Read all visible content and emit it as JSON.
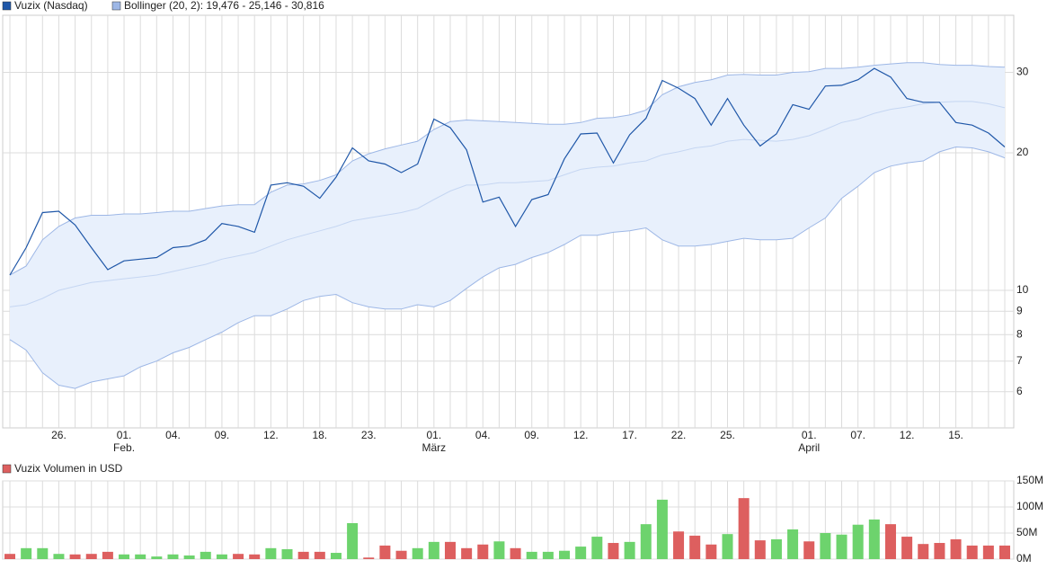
{
  "chart_data": [
    {
      "type": "line",
      "log_scale": true,
      "grid": true,
      "categories": [
        null,
        null,
        null,
        "26.",
        null,
        null,
        null,
        "01.",
        null,
        null,
        "04.",
        null,
        null,
        "09.",
        null,
        null,
        "12.",
        null,
        null,
        "18.",
        null,
        null,
        "23.",
        null,
        null,
        null,
        "01.",
        null,
        null,
        "04.",
        null,
        null,
        "09.",
        null,
        null,
        "12.",
        null,
        null,
        "17.",
        null,
        null,
        "22.",
        null,
        null,
        "25.",
        null,
        null,
        null,
        null,
        "01.",
        null,
        null,
        "07.",
        null,
        null,
        "12.",
        null,
        null,
        "15.",
        null,
        null,
        null
      ],
      "category_sublabels": [
        null,
        null,
        null,
        null,
        null,
        null,
        null,
        "Feb.",
        null,
        null,
        null,
        null,
        null,
        null,
        null,
        null,
        null,
        null,
        null,
        null,
        null,
        null,
        null,
        null,
        null,
        null,
        "März",
        null,
        null,
        null,
        null,
        null,
        null,
        null,
        null,
        null,
        null,
        null,
        null,
        null,
        null,
        null,
        null,
        null,
        null,
        null,
        null,
        null,
        null,
        "April",
        null,
        null,
        null,
        null,
        null,
        null,
        null,
        null,
        null,
        null,
        null,
        null
      ],
      "series": [
        {
          "name": "Vuzix (Nasdaq)",
          "color": "#1f57a8",
          "values": [
            10.8,
            12.4,
            14.8,
            14.9,
            13.9,
            12.4,
            11.1,
            11.6,
            11.7,
            11.8,
            12.4,
            12.5,
            12.9,
            14.0,
            13.8,
            13.4,
            17.0,
            17.2,
            16.9,
            15.9,
            17.7,
            20.5,
            19.2,
            18.9,
            18.1,
            18.9,
            23.7,
            22.7,
            20.3,
            15.6,
            16.0,
            13.8,
            15.8,
            16.2,
            19.4,
            22.0,
            22.1,
            19.0,
            21.9,
            23.8,
            28.8,
            27.7,
            26.3,
            23.0,
            26.3,
            23.0,
            20.7,
            22.0,
            25.5,
            24.9,
            28.0,
            28.1,
            28.9,
            30.6,
            29.3,
            26.3,
            25.8,
            25.8,
            23.3,
            23.0,
            22.1,
            20.6
          ]
        }
      ],
      "bollinger": {
        "name": "Bollinger (20, 2): 19,476 - 25,146 - 30,816",
        "color": "#9db7e6",
        "fill": "#e8f0fc",
        "upper": [
          10.8,
          11.3,
          12.9,
          13.8,
          14.4,
          14.6,
          14.6,
          14.7,
          14.7,
          14.8,
          14.9,
          14.9,
          15.1,
          15.3,
          15.4,
          15.4,
          16.4,
          17.0,
          17.1,
          17.4,
          17.9,
          19.2,
          19.9,
          20.4,
          20.8,
          21.2,
          22.5,
          23.4,
          23.6,
          23.5,
          23.4,
          23.3,
          23.2,
          23.1,
          23.1,
          23.3,
          23.8,
          23.9,
          24.2,
          24.8,
          26.8,
          27.9,
          28.5,
          28.9,
          29.6,
          29.7,
          29.6,
          29.6,
          30.0,
          30.1,
          30.6,
          30.6,
          30.8,
          31.1,
          31.3,
          31.5,
          31.5,
          31.2,
          31.1,
          31.1,
          30.9,
          30.8
        ],
        "middle": [
          9.2,
          9.3,
          9.6,
          10.0,
          10.2,
          10.4,
          10.5,
          10.6,
          10.7,
          10.8,
          11.0,
          11.2,
          11.4,
          11.7,
          11.9,
          12.1,
          12.5,
          12.9,
          13.2,
          13.5,
          13.8,
          14.2,
          14.4,
          14.6,
          14.8,
          15.1,
          15.8,
          16.5,
          17.0,
          17.0,
          17.2,
          17.2,
          17.3,
          17.4,
          17.9,
          18.4,
          18.6,
          18.7,
          19.0,
          19.2,
          19.8,
          20.1,
          20.5,
          20.7,
          21.2,
          21.4,
          21.3,
          21.2,
          21.4,
          21.8,
          22.5,
          23.3,
          23.7,
          24.4,
          24.9,
          25.2,
          25.6,
          25.8,
          25.9,
          25.9,
          25.6,
          25.1
        ],
        "lower": [
          7.8,
          7.4,
          6.6,
          6.2,
          6.1,
          6.3,
          6.4,
          6.5,
          6.8,
          7.0,
          7.3,
          7.5,
          7.8,
          8.1,
          8.5,
          8.8,
          8.8,
          9.1,
          9.5,
          9.7,
          9.8,
          9.4,
          9.2,
          9.1,
          9.1,
          9.3,
          9.2,
          9.5,
          10.1,
          10.7,
          11.2,
          11.4,
          11.8,
          12.1,
          12.6,
          13.2,
          13.2,
          13.4,
          13.5,
          13.7,
          12.9,
          12.5,
          12.5,
          12.6,
          12.8,
          13.0,
          12.9,
          12.9,
          13.0,
          13.7,
          14.4,
          15.9,
          16.9,
          18.1,
          18.7,
          19.0,
          19.2,
          20.1,
          20.6,
          20.5,
          20.1,
          19.5
        ]
      },
      "ylim": [
        5,
        40
      ],
      "yticks": [
        6,
        7,
        8,
        9,
        10,
        20,
        30
      ]
    },
    {
      "type": "bar",
      "grid": true,
      "series": [
        {
          "name": "Vuzix Volumen in USD",
          "color": "#dd5f5f",
          "values": [
            10000000,
            21000000,
            21000000,
            10000000,
            9000000,
            10000000,
            14000000,
            9000000,
            9000000,
            5000000,
            9000000,
            7000000,
            14000000,
            9000000,
            10000000,
            9000000,
            21000000,
            19000000,
            14000000,
            14000000,
            12000000,
            69000000,
            3000000,
            26000000,
            16000000,
            21000000,
            33000000,
            33000000,
            21000000,
            28000000,
            34000000,
            21000000,
            14000000,
            14000000,
            16000000,
            24000000,
            43000000,
            31000000,
            33000000,
            67000000,
            114000000,
            53000000,
            45000000,
            28000000,
            48000000,
            117000000,
            36000000,
            38000000,
            57000000,
            34000000,
            50000000,
            47000000,
            66000000,
            76000000,
            67000000,
            43000000,
            29000000,
            31000000,
            38000000,
            26000000,
            26000000,
            26000000
          ],
          "colors": [
            "#dd5f5f",
            "#6dd36d",
            "#6dd36d",
            "#6dd36d",
            "#dd5f5f",
            "#dd5f5f",
            "#dd5f5f",
            "#6dd36d",
            "#6dd36d",
            "#6dd36d",
            "#6dd36d",
            "#6dd36d",
            "#6dd36d",
            "#6dd36d",
            "#dd5f5f",
            "#dd5f5f",
            "#6dd36d",
            "#6dd36d",
            "#dd5f5f",
            "#dd5f5f",
            "#6dd36d",
            "#6dd36d",
            "#dd5f5f",
            "#dd5f5f",
            "#dd5f5f",
            "#6dd36d",
            "#6dd36d",
            "#dd5f5f",
            "#dd5f5f",
            "#dd5f5f",
            "#6dd36d",
            "#dd5f5f",
            "#6dd36d",
            "#6dd36d",
            "#6dd36d",
            "#6dd36d",
            "#6dd36d",
            "#dd5f5f",
            "#6dd36d",
            "#6dd36d",
            "#6dd36d",
            "#dd5f5f",
            "#dd5f5f",
            "#dd5f5f",
            "#6dd36d",
            "#dd5f5f",
            "#dd5f5f",
            "#6dd36d",
            "#6dd36d",
            "#dd5f5f",
            "#6dd36d",
            "#6dd36d",
            "#6dd36d",
            "#6dd36d",
            "#dd5f5f",
            "#dd5f5f",
            "#dd5f5f",
            "#dd5f5f",
            "#dd5f5f",
            "#dd5f5f",
            "#dd5f5f",
            "#dd5f5f"
          ]
        }
      ],
      "ylim": [
        0,
        150000000
      ],
      "yticks": [
        {
          "value": 0,
          "label": "0M"
        },
        {
          "value": 50000000,
          "label": "50M"
        },
        {
          "value": 100000000,
          "label": "100M"
        },
        {
          "value": 150000000,
          "label": "150M"
        }
      ]
    }
  ]
}
